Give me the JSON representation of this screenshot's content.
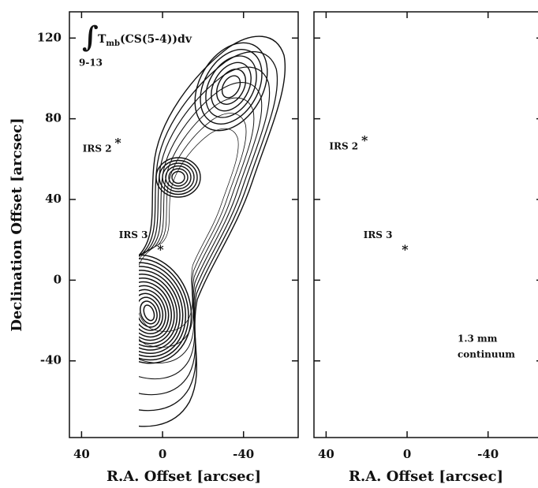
{
  "chart_data": [
    {
      "type": "contour",
      "title": {
        "symbol": "∫",
        "text": "T",
        "subscript": "mb",
        "rest": "(CS(5-4))dv",
        "limits": "9-13"
      },
      "xlabel": "R.A. Offset [arcsec]",
      "ylabel": "Declination Offset [arcsec]",
      "xlim": [
        46,
        -67
      ],
      "ylim": [
        -78,
        133
      ],
      "xticks": [
        40,
        0,
        -40
      ],
      "yticks": [
        -40,
        0,
        40,
        80,
        120
      ],
      "sources": [
        {
          "name": "IRS 2",
          "x": 22,
          "y": 69
        },
        {
          "name": "IRS 3",
          "x": 1,
          "y": 16
        }
      ]
    },
    {
      "type": "contour",
      "xlabel": "R.A. Offset [arcsec]",
      "annotations": [
        "1.3 mm",
        "continuum"
      ],
      "xlim": [
        46,
        -67
      ],
      "ylim": [
        -78,
        133
      ],
      "xticks": [
        40,
        0,
        -40
      ],
      "yticks": [
        -40,
        0,
        40,
        80,
        120
      ],
      "sources": [
        {
          "name": "IRS 2",
          "x": 21,
          "y": 70
        },
        {
          "name": "IRS 3",
          "x": 1,
          "y": 16
        }
      ]
    }
  ]
}
